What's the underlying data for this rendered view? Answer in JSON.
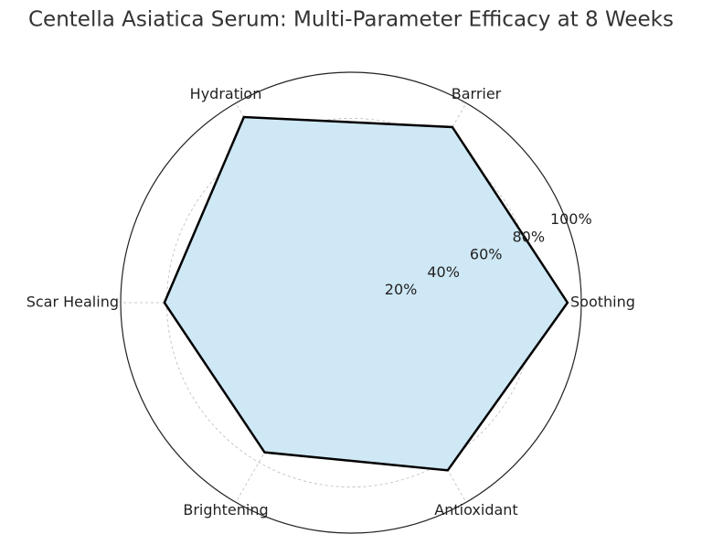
{
  "chart_data": {
    "type": "radar",
    "title": "Centella Asiatica Serum: Multi-Parameter Efficacy at 8 Weeks",
    "categories": [
      "Soothing",
      "Barrier",
      "Hydration",
      "Scar Healing",
      "Brightening",
      "Antioxidant"
    ],
    "values": [
      94,
      88,
      93,
      81,
      75,
      84
    ],
    "color": "#cfe8f5",
    "line_color": "#000000",
    "ylim": [
      0,
      100
    ],
    "yticks": [
      {
        "value": 20,
        "label": "20%"
      },
      {
        "value": 40,
        "label": "40%"
      },
      {
        "value": 60,
        "label": "60%"
      },
      {
        "value": 80,
        "label": "80%"
      },
      {
        "value": 100,
        "label": "100%"
      }
    ],
    "grid": true
  }
}
